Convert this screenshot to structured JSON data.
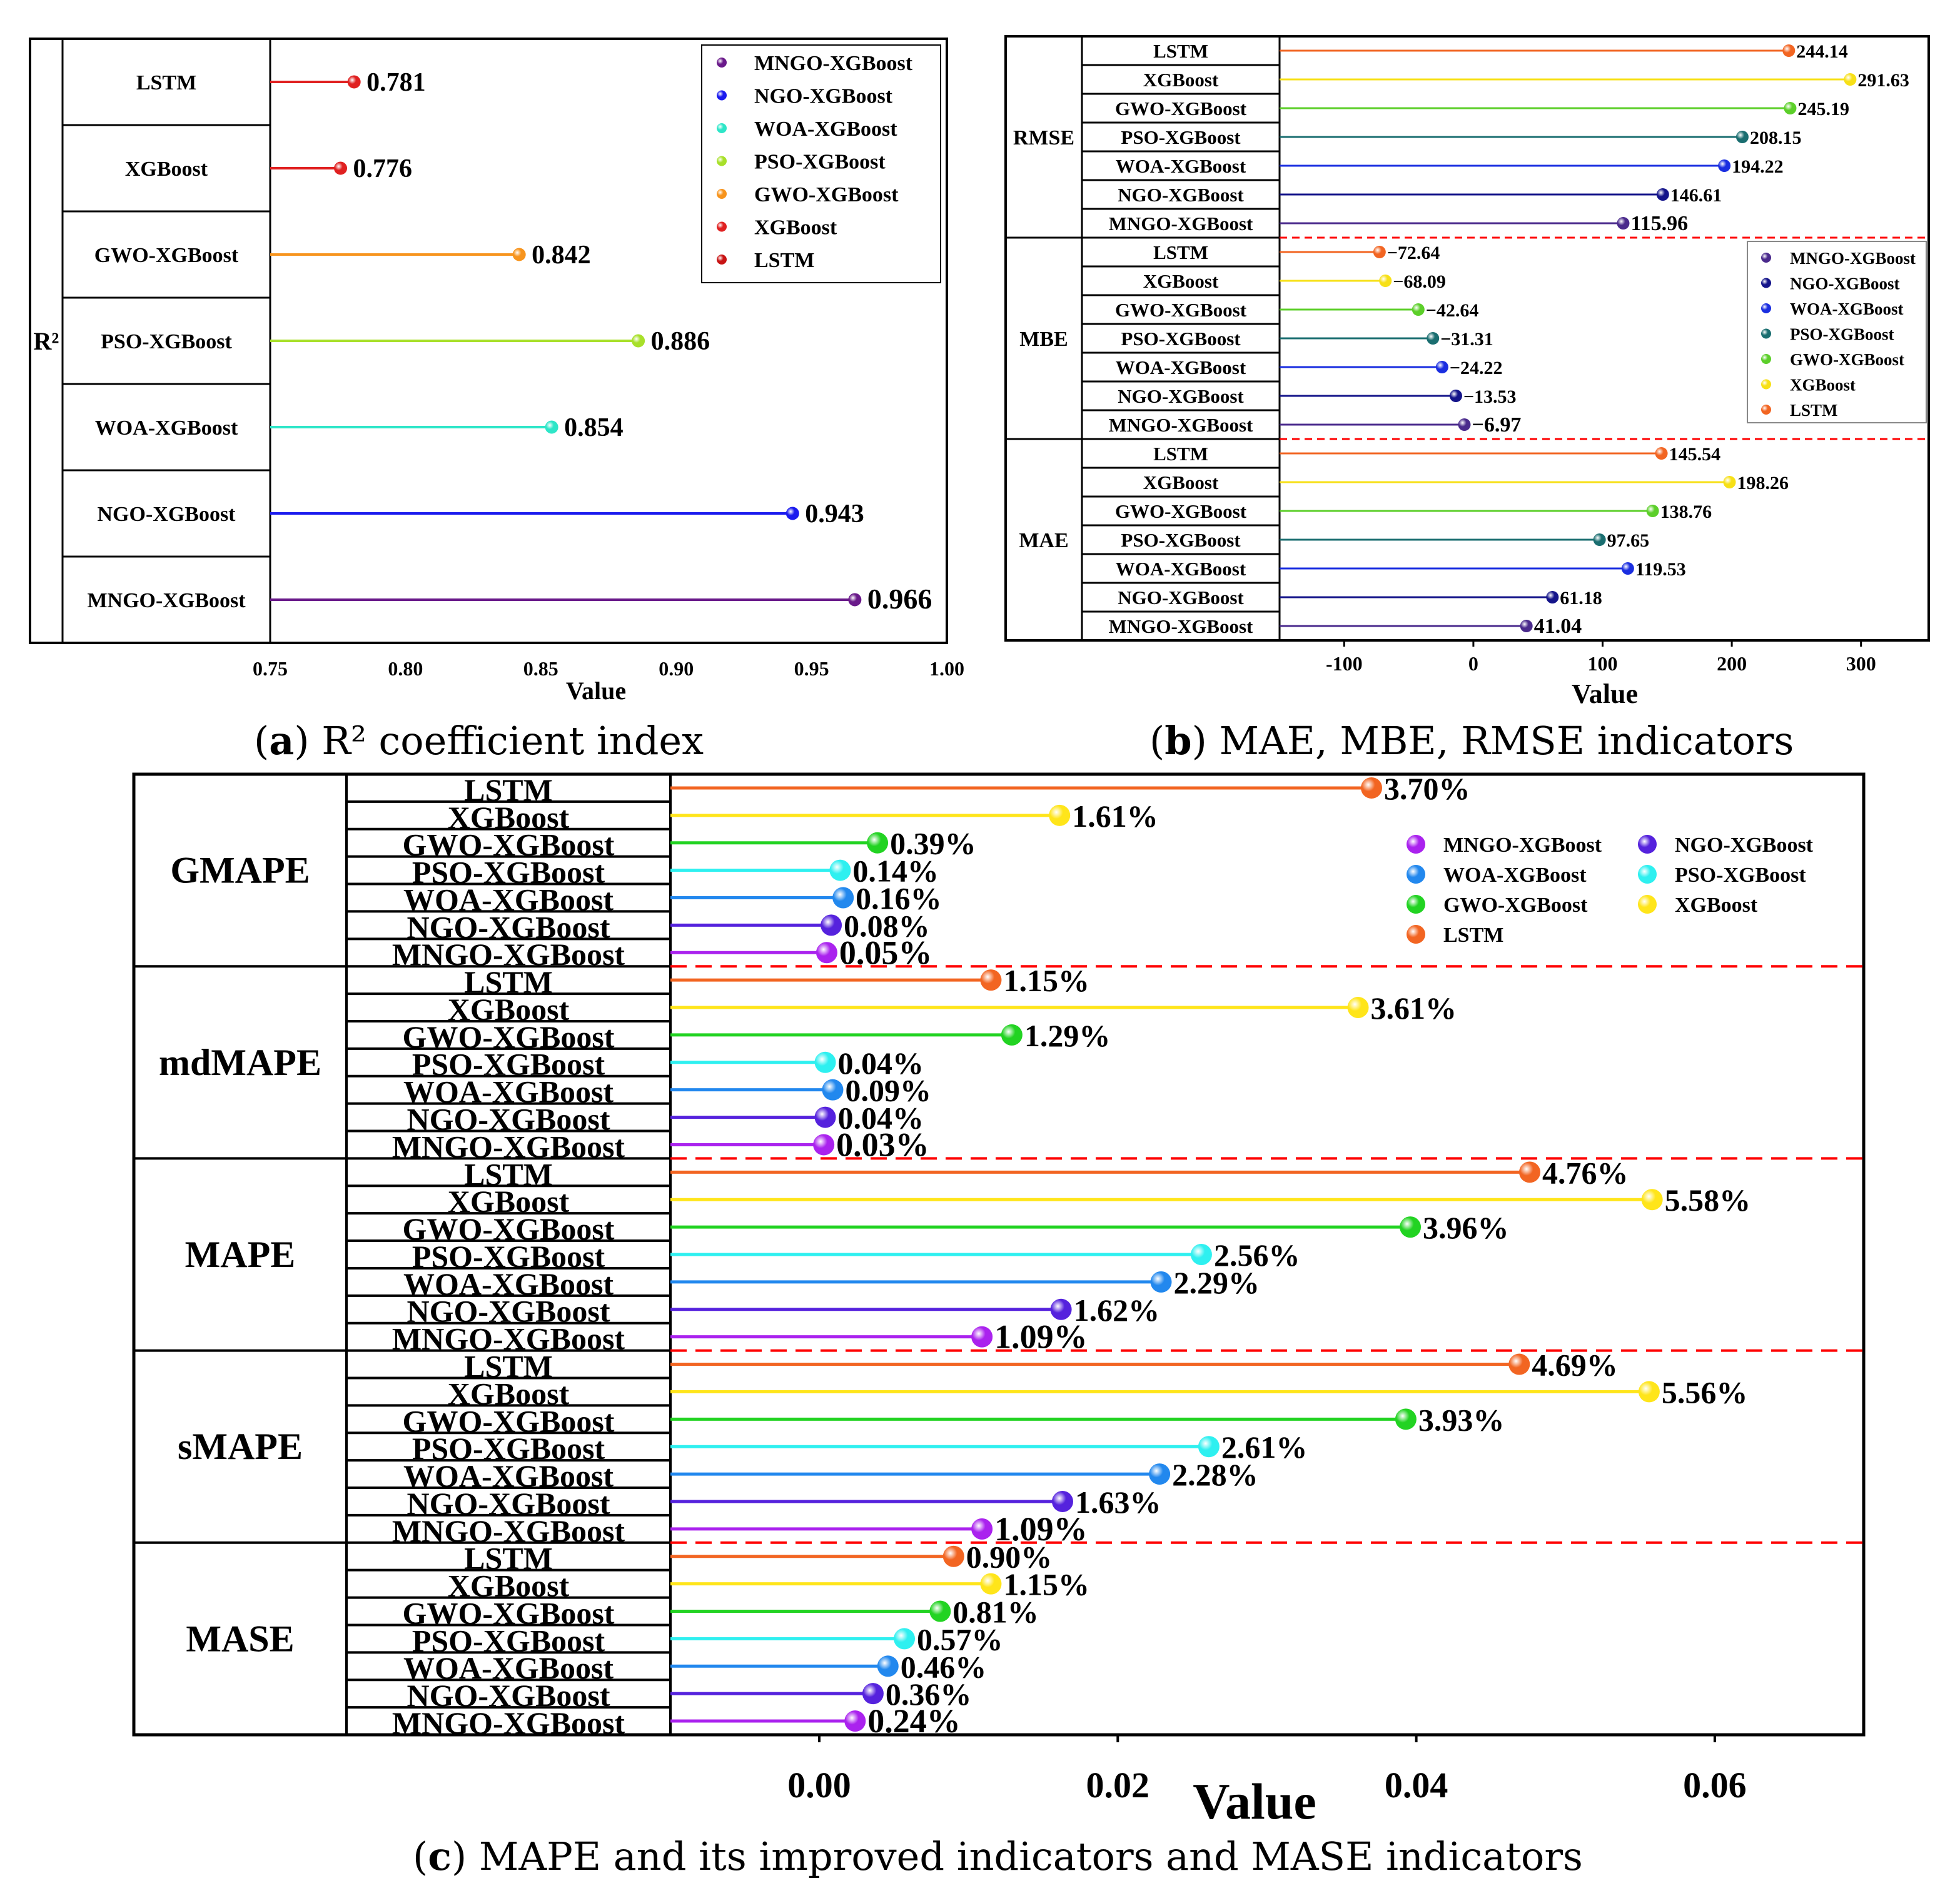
{
  "chart_data": [
    {
      "id": "a",
      "type": "lollipop",
      "caption": {
        "letter": "a",
        "text": ") R² coefficient index"
      },
      "group_label": "R²",
      "xlabel": "Value",
      "xlim": [
        0.75,
        1.0
      ],
      "ticks": [
        0.75,
        0.8,
        0.85,
        0.9,
        0.95,
        1.0
      ],
      "tick_labels": [
        "0.75",
        "0.80",
        "0.85",
        "0.90",
        "0.95",
        "1.00"
      ],
      "categories": [
        "LSTM",
        "XGBoost",
        "GWO-XGBoost",
        "PSO-XGBoost",
        "WOA-XGBoost",
        "NGO-XGBoost",
        "MNGO-XGBoost"
      ],
      "values": [
        0.781,
        0.776,
        0.842,
        0.886,
        0.854,
        0.943,
        0.966
      ],
      "value_labels": [
        "0.781",
        "0.776",
        "0.842",
        "0.886",
        "0.854",
        "0.943",
        "0.966"
      ],
      "colors": [
        "#e02020",
        "#e02020",
        "#f7941d",
        "#a8e02a",
        "#2ee6c8",
        "#1a1aee",
        "#6a1a8a"
      ],
      "highlight_color": "#ff0000",
      "legend": {
        "position": "top-right",
        "items": [
          {
            "name": "MNGO-XGBoost",
            "color": "#6a1a8a"
          },
          {
            "name": "NGO-XGBoost",
            "color": "#1a1aee"
          },
          {
            "name": "WOA-XGBoost",
            "color": "#2ee6c8"
          },
          {
            "name": "PSO-XGBoost",
            "color": "#a8e02a"
          },
          {
            "name": "GWO-XGBoost",
            "color": "#f7941d"
          },
          {
            "name": "XGBoost",
            "color": "#e02020"
          },
          {
            "name": "LSTM",
            "color": "#c81414"
          }
        ]
      }
    },
    {
      "id": "b",
      "type": "lollipop",
      "caption": {
        "letter": "b",
        "text": ") MAE, MBE, RMSE indicators"
      },
      "xlabel": "Value",
      "xlim": [
        -150,
        350
      ],
      "ticks": [
        -100,
        0,
        100,
        200,
        300
      ],
      "tick_labels": [
        "-100",
        "0",
        "100",
        "200",
        "300"
      ],
      "categories": [
        "LSTM",
        "XGBoost",
        "GWO-XGBoost",
        "PSO-XGBoost",
        "WOA-XGBoost",
        "NGO-XGBoost",
        "MNGO-XGBoost"
      ],
      "colors": [
        "#f26522",
        "#f7e017",
        "#5ccf2a",
        "#1a6e70",
        "#1a2ee0",
        "#14148a",
        "#4a2a8c"
      ],
      "highlight_color": "#ff0000",
      "groups": [
        {
          "name": "RMSE",
          "values": [
            244.14,
            291.63,
            245.19,
            208.15,
            194.22,
            146.61,
            115.96
          ],
          "value_labels": [
            "244.14",
            "291.63",
            "245.19",
            "208.15",
            "194.22",
            "146.61",
            "115.96"
          ]
        },
        {
          "name": "MBE",
          "values": [
            -72.64,
            -68.09,
            -42.64,
            -31.31,
            -24.22,
            -13.53,
            -6.97
          ],
          "value_labels": [
            "−72.64",
            "−68.09",
            "−42.64",
            "−31.31",
            "−24.22",
            "−13.53",
            "−6.97"
          ]
        },
        {
          "name": "MAE",
          "values": [
            145.54,
            198.26,
            138.76,
            97.65,
            119.53,
            61.18,
            41.04
          ],
          "value_labels": [
            "145.54",
            "198.26",
            "138.76",
            "97.65",
            "119.53",
            "61.18",
            "41.04"
          ]
        }
      ],
      "legend": {
        "position": "right-middle",
        "items": [
          {
            "name": "MNGO-XGBoost",
            "color": "#4a2a8c"
          },
          {
            "name": "NGO-XGBoost",
            "color": "#14148a"
          },
          {
            "name": "WOA-XGBoost",
            "color": "#1a2ee0"
          },
          {
            "name": "PSO-XGBoost",
            "color": "#1a6e70"
          },
          {
            "name": "GWO-XGBoost",
            "color": "#5ccf2a"
          },
          {
            "name": "XGBoost",
            "color": "#f7e017"
          },
          {
            "name": "LSTM",
            "color": "#f26522"
          }
        ]
      }
    },
    {
      "id": "c",
      "type": "lollipop",
      "caption": {
        "letter": "c",
        "text": ") MAPE and its improved indicators and MASE indicators"
      },
      "xlabel": "Value",
      "xlim": [
        -0.01,
        0.07
      ],
      "ticks": [
        0.0,
        0.02,
        0.04,
        0.06
      ],
      "tick_labels": [
        "0.00",
        "0.02",
        "0.04",
        "0.06"
      ],
      "categories": [
        "LSTM",
        "XGBoost",
        "GWO-XGBoost",
        "PSO-XGBoost",
        "WOA-XGBoost",
        "NGO-XGBoost",
        "MNGO-XGBoost"
      ],
      "colors": [
        "#f26522",
        "#ffe51a",
        "#22d322",
        "#2ef0f0",
        "#2288ee",
        "#5522dd",
        "#aa22ee"
      ],
      "highlight_color": "#ff0000",
      "groups": [
        {
          "name": "GMAPE",
          "values": [
            0.037,
            0.0161,
            0.0039,
            0.0014,
            0.0016,
            0.0008,
            0.0005
          ],
          "value_labels": [
            "3.70%",
            "1.61%",
            "0.39%",
            "0.14%",
            "0.16%",
            "0.08%",
            "0.05%"
          ]
        },
        {
          "name": "mdMAPE",
          "values": [
            0.0115,
            0.0361,
            0.0129,
            0.0004,
            0.0009,
            0.0004,
            0.0003
          ],
          "value_labels": [
            "1.15%",
            "3.61%",
            "1.29%",
            "0.04%",
            "0.09%",
            "0.04%",
            "0.03%"
          ]
        },
        {
          "name": "MAPE",
          "values": [
            0.0476,
            0.0558,
            0.0396,
            0.0256,
            0.0229,
            0.0162,
            0.0109
          ],
          "value_labels": [
            "4.76%",
            "5.58%",
            "3.96%",
            "2.56%",
            "2.29%",
            "1.62%",
            "1.09%"
          ]
        },
        {
          "name": "sMAPE",
          "values": [
            0.0469,
            0.0556,
            0.0393,
            0.0261,
            0.0228,
            0.0163,
            0.0109
          ],
          "value_labels": [
            "4.69%",
            "5.56%",
            "3.93%",
            "2.61%",
            "2.28%",
            "1.63%",
            "1.09%"
          ]
        },
        {
          "name": "MASE",
          "values": [
            0.009,
            0.0115,
            0.0081,
            0.0057,
            0.0046,
            0.0036,
            0.0024
          ],
          "value_labels": [
            "0.90%",
            "1.15%",
            "0.81%",
            "0.57%",
            "0.46%",
            "0.36%",
            "0.24%"
          ]
        }
      ],
      "legend": {
        "position": "top-right",
        "items": [
          {
            "name": "MNGO-XGBoost",
            "color": "#aa22ee"
          },
          {
            "name": "NGO-XGBoost",
            "color": "#5522dd"
          },
          {
            "name": "WOA-XGBoost",
            "color": "#2288ee"
          },
          {
            "name": "PSO-XGBoost",
            "color": "#2ef0f0"
          },
          {
            "name": "GWO-XGBoost",
            "color": "#22d322"
          },
          {
            "name": "XGBoost",
            "color": "#ffe51a"
          },
          {
            "name": "LSTM",
            "color": "#f26522"
          }
        ]
      }
    }
  ]
}
